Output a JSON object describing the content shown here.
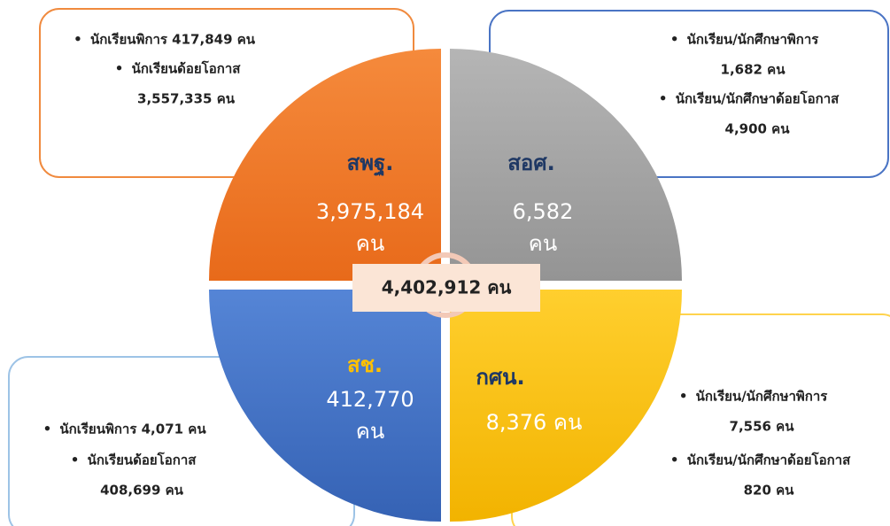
{
  "center_total": "4,402,912 คน",
  "quadrants": [
    {
      "name": "สพฐ.",
      "total_lines": [
        "3,975,184",
        "คน"
      ],
      "details": [
        {
          "lines": [
            "นักเรียนพิการ 417,849 คน"
          ]
        },
        {
          "lines": [
            "นักเรียนด้อยโอกาส",
            "3,557,335 คน"
          ]
        }
      ]
    },
    {
      "name": "สอศ.",
      "total_lines": [
        "6,582",
        "คน"
      ],
      "details": [
        {
          "lines": [
            "นักเรียน/นักศึกษาพิการ",
            "1,682 คน"
          ]
        },
        {
          "lines": [
            "นักเรียน/นักศึกษาด้อยโอกาส",
            "4,900 คน"
          ]
        }
      ]
    },
    {
      "name": "สช.",
      "total_lines": [
        "412,770",
        "คน"
      ],
      "details": [
        {
          "lines": [
            "นักเรียนพิการ 4,071 คน"
          ]
        },
        {
          "lines": [
            "นักเรียนด้อยโอกาส",
            "408,699 คน"
          ]
        }
      ]
    },
    {
      "name": "กศน.",
      "total_lines": [
        "8,376 คน"
      ],
      "details": [
        {
          "lines": [
            "นักเรียน/นักศึกษาพิการ",
            "7,556 คน"
          ]
        },
        {
          "lines": [
            "นักเรียน/นักศึกษาด้อยโอกาส",
            "820 คน"
          ]
        }
      ]
    }
  ]
}
